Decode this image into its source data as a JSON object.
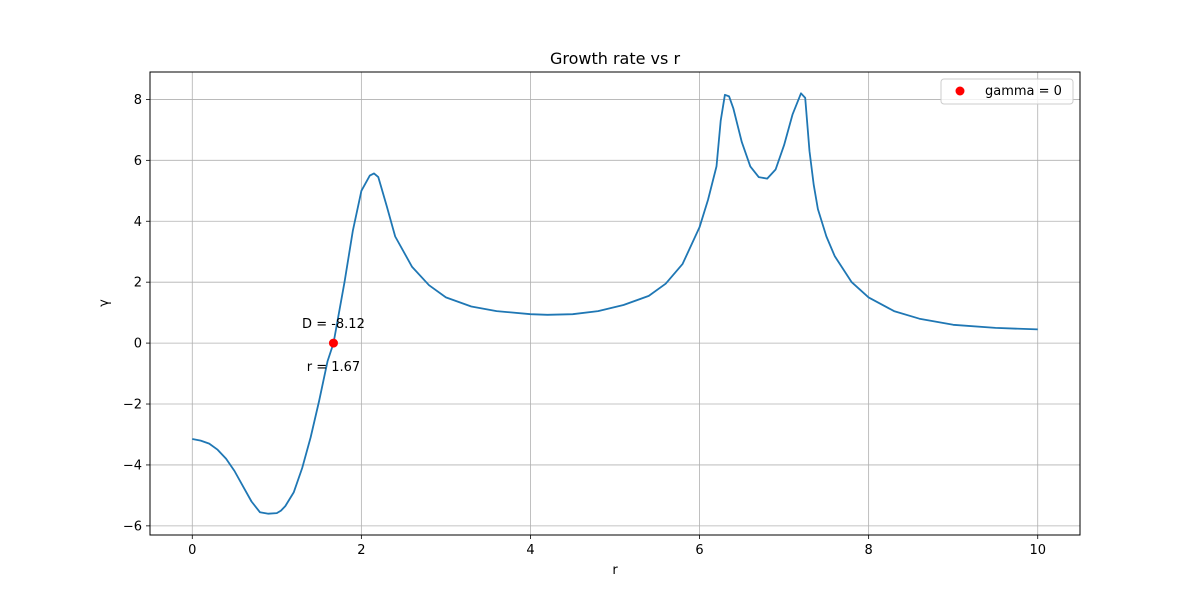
{
  "chart_data": {
    "type": "line",
    "title": "Growth rate vs r",
    "xlabel": "r",
    "ylabel": "γ",
    "xlim": [
      -0.5,
      10.5
    ],
    "ylim": [
      -6.3,
      8.9
    ],
    "xticks": [
      0,
      2,
      4,
      6,
      8,
      10
    ],
    "yticks": [
      -6,
      -4,
      -2,
      0,
      2,
      4,
      6,
      8
    ],
    "xtick_labels": [
      "0",
      "2",
      "4",
      "6",
      "8",
      "10"
    ],
    "ytick_labels": [
      "−6",
      "−4",
      "−2",
      "0",
      "2",
      "4",
      "6",
      "8"
    ],
    "grid": true,
    "legend_position": "top-right",
    "series": [
      {
        "color": "#1f77b4",
        "x": [
          0.0,
          0.1,
          0.2,
          0.3,
          0.4,
          0.5,
          0.6,
          0.7,
          0.8,
          0.9,
          1.0,
          1.05,
          1.1,
          1.2,
          1.3,
          1.4,
          1.5,
          1.6,
          1.67,
          1.8,
          1.9,
          2.0,
          2.1,
          2.15,
          2.2,
          2.3,
          2.4,
          2.6,
          2.8,
          3.0,
          3.3,
          3.6,
          4.0,
          4.2,
          4.5,
          4.8,
          5.1,
          5.4,
          5.6,
          5.8,
          6.0,
          6.1,
          6.2,
          6.25,
          6.3,
          6.35,
          6.4,
          6.5,
          6.6,
          6.7,
          6.8,
          6.9,
          7.0,
          7.1,
          7.2,
          7.25,
          7.3,
          7.35,
          7.4,
          7.5,
          7.6,
          7.8,
          8.0,
          8.3,
          8.6,
          9.0,
          9.5,
          10.0
        ],
        "y": [
          -3.15,
          -3.2,
          -3.3,
          -3.5,
          -3.8,
          -4.2,
          -4.7,
          -5.2,
          -5.55,
          -5.6,
          -5.58,
          -5.5,
          -5.35,
          -4.9,
          -4.1,
          -3.1,
          -1.9,
          -0.6,
          0.0,
          2.0,
          3.7,
          5.0,
          5.5,
          5.57,
          5.45,
          4.5,
          3.5,
          2.5,
          1.9,
          1.5,
          1.2,
          1.05,
          0.95,
          0.93,
          0.95,
          1.05,
          1.25,
          1.55,
          1.95,
          2.6,
          3.8,
          4.7,
          5.8,
          7.3,
          8.15,
          8.1,
          7.7,
          6.6,
          5.8,
          5.45,
          5.4,
          5.7,
          6.5,
          7.5,
          8.2,
          8.05,
          6.3,
          5.2,
          4.4,
          3.5,
          2.85,
          2.0,
          1.5,
          1.05,
          0.8,
          0.6,
          0.5,
          0.45
        ]
      }
    ],
    "marker": {
      "name": "gamma = 0",
      "x": 1.67,
      "y": 0.0,
      "color": "#ff0000"
    },
    "annotations": [
      {
        "text": "D = -8.12",
        "x": 1.67,
        "y": 0.0,
        "placement": "above"
      },
      {
        "text": "r = 1.67",
        "x": 1.67,
        "y": 0.0,
        "placement": "below"
      }
    ]
  }
}
